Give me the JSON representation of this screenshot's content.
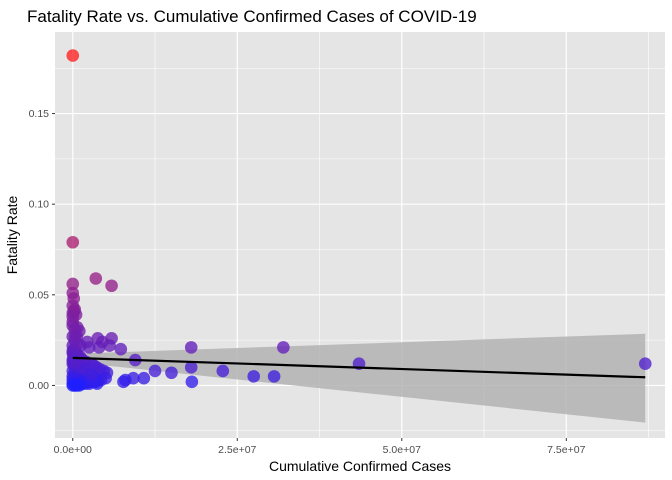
{
  "chart_data": {
    "type": "scatter",
    "title": "Fatality Rate vs. Cumulative Confirmed Cases of COVID-19",
    "xlabel": "Cumulative Confirmed Cases",
    "ylabel": "Fatality Rate",
    "xlim": [
      -2700000,
      90000000
    ],
    "ylim": [
      -0.029,
      0.195
    ],
    "x_ticks": [
      0,
      25000000,
      50000000,
      75000000
    ],
    "x_tick_labels": [
      "0.0e+00",
      "2.5e+07",
      "5.0e+07",
      "7.5e+07"
    ],
    "y_ticks": [
      0,
      0.05,
      0.1,
      0.15
    ],
    "y_tick_labels": [
      "0.00",
      "0.05",
      "0.10",
      "0.15"
    ],
    "grid": true,
    "legend": "none",
    "colors": {
      "panel": "#e5e5e5",
      "grid": "#ffffff",
      "low": "#1f1fff",
      "high": "#ff2020",
      "trend": "#000000",
      "band": "#b3b3b3"
    },
    "trend_line": {
      "x": [
        0,
        87000000
      ],
      "y": [
        0.0152,
        0.0045
      ]
    },
    "confidence_band": {
      "x": [
        0,
        87000000
      ],
      "upper": [
        0.0175,
        0.0285
      ],
      "lower": [
        0.0129,
        -0.0205
      ]
    },
    "points": {
      "x": [
        0,
        0,
        0,
        3500000,
        5900000,
        0,
        150000,
        300000,
        0,
        500000,
        200000,
        700000,
        0,
        1000000,
        0,
        3800000,
        5900000,
        300000,
        2200000,
        4500000,
        1200000,
        2500000,
        4000000,
        7300000,
        5600000,
        18000000,
        32000000,
        500000,
        9500000,
        43500000,
        87000000,
        18000000,
        12500000,
        15000000,
        22800000,
        10800000,
        9200000,
        27500000,
        30600000,
        8000000,
        7700000,
        18100000,
        0,
        100000,
        400000,
        800000,
        1500000,
        2000000,
        2800000,
        3200000,
        3600000,
        4100000,
        4700000,
        5200000,
        0,
        200000,
        600000,
        900000,
        1300000,
        1700000,
        2400000,
        3000000,
        3400000,
        3900000,
        0,
        300000,
        700000,
        1100000,
        1600000,
        2100000,
        2600000,
        3300000,
        4300000,
        5000000,
        0,
        100000,
        500000,
        1000000,
        1400000,
        1900000,
        2300000,
        2700000,
        3100000,
        3700000,
        0,
        200000,
        800000,
        1200000,
        1800000,
        0,
        400000,
        1500000,
        2500000,
        3500000,
        0,
        300000,
        600000,
        1000000,
        0,
        100000,
        500000,
        900000,
        1300000,
        2000000,
        2900000,
        0,
        200000,
        700000,
        1100000,
        0,
        400000,
        800000,
        0,
        0,
        300000,
        600000,
        0,
        100000,
        500000
      ],
      "y": [
        0.182,
        0.079,
        0.056,
        0.059,
        0.055,
        0.051,
        0.048,
        0.042,
        0.04,
        0.039,
        0.041,
        0.032,
        0.033,
        0.03,
        0.027,
        0.026,
        0.026,
        0.025,
        0.024,
        0.024,
        0.022,
        0.021,
        0.021,
        0.02,
        0.022,
        0.021,
        0.021,
        0.018,
        0.014,
        0.012,
        0.012,
        0.01,
        0.008,
        0.007,
        0.008,
        0.004,
        0.004,
        0.005,
        0.005,
        0.003,
        0.002,
        0.002,
        0.019,
        0.017,
        0.016,
        0.015,
        0.014,
        0.013,
        0.012,
        0.011,
        0.01,
        0.009,
        0.008,
        0.007,
        0.012,
        0.011,
        0.01,
        0.009,
        0.008,
        0.007,
        0.006,
        0.005,
        0.004,
        0.003,
        0.008,
        0.007,
        0.006,
        0.005,
        0.004,
        0.003,
        0.002,
        0.002,
        0.003,
        0.004,
        0.005,
        0.004,
        0.003,
        0.002,
        0.001,
        0.001,
        0.002,
        0.003,
        0.002,
        0.001,
        0.003,
        0.002,
        0.001,
        0.001,
        0.002,
        0.001,
        0.001,
        0.002,
        0.001,
        0.002,
        0.0,
        0.0,
        0.0,
        0.0,
        0.014,
        0.013,
        0.012,
        0.011,
        0.01,
        0.009,
        0.006,
        0.022,
        0.02,
        0.017,
        0.016,
        0.035,
        0.028,
        0.023,
        0.044,
        0.038,
        0.031,
        0.027,
        0.018,
        0.015,
        0.013
      ]
    }
  }
}
